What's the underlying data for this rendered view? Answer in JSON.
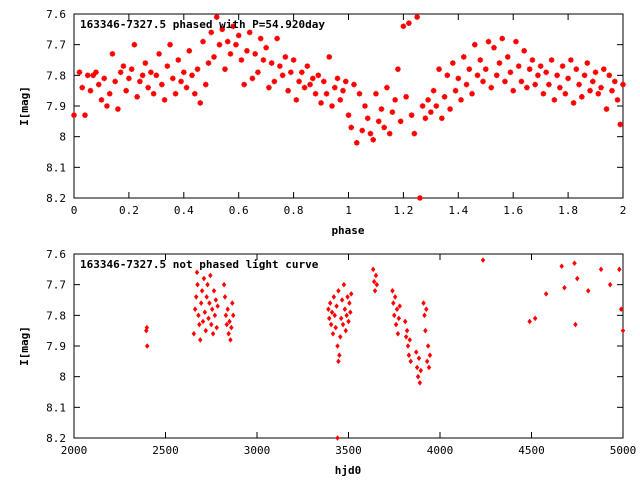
{
  "chart_data": [
    {
      "type": "scatter",
      "title": "163346-7327.5 phased with P=54.920day",
      "xlabel": "phase",
      "ylabel": "I[mag]",
      "xlim": [
        0,
        2
      ],
      "ylim": [
        7.6,
        8.2
      ],
      "y_inverted": true,
      "xticks": [
        "0",
        "0.2",
        "0.4",
        "0.6",
        "0.8",
        "1",
        "1.2",
        "1.4",
        "1.6",
        "1.8",
        "2"
      ],
      "yticks": [
        "7.6",
        "7.7",
        "7.8",
        "7.9",
        "8",
        "8.1",
        "8.2"
      ],
      "marker_color": "#ff0000",
      "grid": false,
      "points": [
        [
          0.0,
          7.93
        ],
        [
          0.02,
          7.79
        ],
        [
          0.03,
          7.84
        ],
        [
          0.04,
          7.93
        ],
        [
          0.05,
          7.8
        ],
        [
          0.06,
          7.85
        ],
        [
          0.07,
          7.8
        ],
        [
          0.08,
          7.79
        ],
        [
          0.09,
          7.83
        ],
        [
          0.1,
          7.88
        ],
        [
          0.11,
          7.81
        ],
        [
          0.12,
          7.9
        ],
        [
          0.13,
          7.86
        ],
        [
          0.14,
          7.73
        ],
        [
          0.15,
          7.82
        ],
        [
          0.16,
          7.91
        ],
        [
          0.17,
          7.79
        ],
        [
          0.18,
          7.77
        ],
        [
          0.19,
          7.85
        ],
        [
          0.2,
          7.81
        ],
        [
          0.21,
          7.78
        ],
        [
          0.22,
          7.7
        ],
        [
          0.23,
          7.87
        ],
        [
          0.24,
          7.82
        ],
        [
          0.25,
          7.8
        ],
        [
          0.26,
          7.76
        ],
        [
          0.27,
          7.84
        ],
        [
          0.28,
          7.79
        ],
        [
          0.29,
          7.86
        ],
        [
          0.3,
          7.8
        ],
        [
          0.31,
          7.73
        ],
        [
          0.32,
          7.83
        ],
        [
          0.33,
          7.88
        ],
        [
          0.34,
          7.77
        ],
        [
          0.35,
          7.7
        ],
        [
          0.36,
          7.81
        ],
        [
          0.37,
          7.86
        ],
        [
          0.38,
          7.75
        ],
        [
          0.39,
          7.82
        ],
        [
          0.4,
          7.79
        ],
        [
          0.41,
          7.84
        ],
        [
          0.42,
          7.72
        ],
        [
          0.43,
          7.8
        ],
        [
          0.44,
          7.86
        ],
        [
          0.45,
          7.78
        ],
        [
          0.46,
          7.89
        ],
        [
          0.47,
          7.69
        ],
        [
          0.48,
          7.83
        ],
        [
          0.49,
          7.76
        ],
        [
          0.5,
          7.66
        ],
        [
          0.51,
          7.74
        ],
        [
          0.52,
          7.61
        ],
        [
          0.53,
          7.7
        ],
        [
          0.54,
          7.65
        ],
        [
          0.55,
          7.78
        ],
        [
          0.56,
          7.69
        ],
        [
          0.57,
          7.73
        ],
        [
          0.58,
          7.64
        ],
        [
          0.59,
          7.7
        ],
        [
          0.6,
          7.67
        ],
        [
          0.61,
          7.75
        ],
        [
          0.62,
          7.83
        ],
        [
          0.63,
          7.72
        ],
        [
          0.64,
          7.66
        ],
        [
          0.65,
          7.81
        ],
        [
          0.66,
          7.73
        ],
        [
          0.67,
          7.79
        ],
        [
          0.68,
          7.68
        ],
        [
          0.69,
          7.75
        ],
        [
          0.7,
          7.71
        ],
        [
          0.71,
          7.84
        ],
        [
          0.72,
          7.76
        ],
        [
          0.73,
          7.82
        ],
        [
          0.74,
          7.68
        ],
        [
          0.75,
          7.77
        ],
        [
          0.76,
          7.8
        ],
        [
          0.77,
          7.74
        ],
        [
          0.78,
          7.85
        ],
        [
          0.79,
          7.79
        ],
        [
          0.8,
          7.75
        ],
        [
          0.81,
          7.88
        ],
        [
          0.82,
          7.82
        ],
        [
          0.83,
          7.79
        ],
        [
          0.84,
          7.84
        ],
        [
          0.85,
          7.77
        ],
        [
          0.86,
          7.83
        ],
        [
          0.87,
          7.81
        ],
        [
          0.88,
          7.86
        ],
        [
          0.89,
          7.8
        ],
        [
          0.9,
          7.89
        ],
        [
          0.91,
          7.82
        ],
        [
          0.92,
          7.86
        ],
        [
          0.93,
          7.74
        ],
        [
          0.94,
          7.9
        ],
        [
          0.95,
          7.84
        ],
        [
          0.96,
          7.81
        ],
        [
          0.97,
          7.88
        ],
        [
          0.98,
          7.85
        ],
        [
          0.99,
          7.82
        ],
        [
          1.0,
          7.93
        ],
        [
          1.01,
          7.97
        ],
        [
          1.02,
          7.83
        ],
        [
          1.03,
          8.02
        ],
        [
          1.04,
          7.86
        ],
        [
          1.05,
          7.98
        ],
        [
          1.06,
          7.9
        ],
        [
          1.07,
          7.94
        ],
        [
          1.08,
          7.99
        ],
        [
          1.09,
          8.01
        ],
        [
          1.1,
          7.86
        ],
        [
          1.11,
          7.95
        ],
        [
          1.12,
          7.91
        ],
        [
          1.13,
          7.97
        ],
        [
          1.14,
          7.84
        ],
        [
          1.15,
          7.99
        ],
        [
          1.16,
          7.92
        ],
        [
          1.17,
          7.88
        ],
        [
          1.18,
          7.78
        ],
        [
          1.19,
          7.95
        ],
        [
          1.2,
          7.64
        ],
        [
          1.21,
          7.87
        ],
        [
          1.22,
          7.63
        ],
        [
          1.23,
          7.93
        ],
        [
          1.24,
          7.99
        ],
        [
          1.25,
          7.61
        ],
        [
          1.26,
          8.2
        ],
        [
          1.27,
          7.9
        ],
        [
          1.28,
          7.94
        ],
        [
          1.29,
          7.88
        ],
        [
          1.3,
          7.92
        ],
        [
          1.31,
          7.85
        ],
        [
          1.32,
          7.9
        ],
        [
          1.33,
          7.78
        ],
        [
          1.34,
          7.94
        ],
        [
          1.35,
          7.87
        ],
        [
          1.36,
          7.8
        ],
        [
          1.37,
          7.91
        ],
        [
          1.38,
          7.76
        ],
        [
          1.39,
          7.85
        ],
        [
          1.4,
          7.81
        ],
        [
          1.41,
          7.88
        ],
        [
          1.42,
          7.74
        ],
        [
          1.43,
          7.83
        ],
        [
          1.44,
          7.78
        ],
        [
          1.45,
          7.86
        ],
        [
          1.46,
          7.7
        ],
        [
          1.47,
          7.8
        ],
        [
          1.48,
          7.75
        ],
        [
          1.49,
          7.82
        ],
        [
          1.5,
          7.78
        ],
        [
          1.51,
          7.69
        ],
        [
          1.52,
          7.84
        ],
        [
          1.53,
          7.71
        ],
        [
          1.54,
          7.8
        ],
        [
          1.55,
          7.76
        ],
        [
          1.56,
          7.68
        ],
        [
          1.57,
          7.82
        ],
        [
          1.58,
          7.74
        ],
        [
          1.59,
          7.79
        ],
        [
          1.6,
          7.85
        ],
        [
          1.61,
          7.69
        ],
        [
          1.62,
          7.77
        ],
        [
          1.63,
          7.82
        ],
        [
          1.64,
          7.72
        ],
        [
          1.65,
          7.84
        ],
        [
          1.66,
          7.78
        ],
        [
          1.67,
          7.75
        ],
        [
          1.68,
          7.83
        ],
        [
          1.69,
          7.8
        ],
        [
          1.7,
          7.77
        ],
        [
          1.71,
          7.86
        ],
        [
          1.72,
          7.79
        ],
        [
          1.73,
          7.83
        ],
        [
          1.74,
          7.75
        ],
        [
          1.75,
          7.88
        ],
        [
          1.76,
          7.8
        ],
        [
          1.77,
          7.84
        ],
        [
          1.78,
          7.77
        ],
        [
          1.79,
          7.86
        ],
        [
          1.8,
          7.81
        ],
        [
          1.81,
          7.75
        ],
        [
          1.82,
          7.89
        ],
        [
          1.83,
          7.78
        ],
        [
          1.84,
          7.83
        ],
        [
          1.85,
          7.87
        ],
        [
          1.86,
          7.8
        ],
        [
          1.87,
          7.76
        ],
        [
          1.88,
          7.85
        ],
        [
          1.89,
          7.82
        ],
        [
          1.9,
          7.79
        ],
        [
          1.91,
          7.86
        ],
        [
          1.92,
          7.84
        ],
        [
          1.93,
          7.78
        ],
        [
          1.94,
          7.91
        ],
        [
          1.95,
          7.8
        ],
        [
          1.96,
          7.85
        ],
        [
          1.97,
          7.82
        ],
        [
          1.98,
          7.88
        ],
        [
          1.99,
          7.96
        ],
        [
          2.0,
          7.83
        ]
      ]
    },
    {
      "type": "scatter",
      "title": "163346-7327.5 not phased light curve",
      "xlabel": "hjd0",
      "ylabel": "I[mag]",
      "xlim": [
        2000,
        5000
      ],
      "ylim": [
        7.6,
        8.2
      ],
      "y_inverted": true,
      "xticks": [
        "2000",
        "2500",
        "3000",
        "3500",
        "4000",
        "4500",
        "5000"
      ],
      "yticks": [
        "7.6",
        "7.7",
        "7.8",
        "7.9",
        "8",
        "8.1",
        "8.2"
      ],
      "marker_color": "#ff0000",
      "grid": false,
      "points": [
        [
          2395,
          7.85
        ],
        [
          2398,
          7.84
        ],
        [
          2400,
          7.9
        ],
        [
          2655,
          7.86
        ],
        [
          2662,
          7.78
        ],
        [
          2668,
          7.74
        ],
        [
          2672,
          7.66
        ],
        [
          2675,
          7.7
        ],
        [
          2680,
          7.8
        ],
        [
          2685,
          7.83
        ],
        [
          2690,
          7.88
        ],
        [
          2695,
          7.76
        ],
        [
          2700,
          7.72
        ],
        [
          2705,
          7.82
        ],
        [
          2710,
          7.68
        ],
        [
          2715,
          7.79
        ],
        [
          2720,
          7.85
        ],
        [
          2725,
          7.74
        ],
        [
          2730,
          7.7
        ],
        [
          2735,
          7.81
        ],
        [
          2740,
          7.76
        ],
        [
          2745,
          7.67
        ],
        [
          2750,
          7.83
        ],
        [
          2755,
          7.78
        ],
        [
          2760,
          7.86
        ],
        [
          2765,
          7.72
        ],
        [
          2770,
          7.8
        ],
        [
          2775,
          7.75
        ],
        [
          2780,
          7.84
        ],
        [
          2785,
          7.77
        ],
        [
          2820,
          7.7
        ],
        [
          2825,
          7.74
        ],
        [
          2830,
          7.8
        ],
        [
          2835,
          7.83
        ],
        [
          2840,
          7.78
        ],
        [
          2845,
          7.86
        ],
        [
          2850,
          7.82
        ],
        [
          2855,
          7.88
        ],
        [
          2860,
          7.84
        ],
        [
          2865,
          7.76
        ],
        [
          2870,
          7.8
        ],
        [
          3390,
          7.78
        ],
        [
          3395,
          7.81
        ],
        [
          3400,
          7.76
        ],
        [
          3405,
          7.83
        ],
        [
          3410,
          7.79
        ],
        [
          3415,
          7.86
        ],
        [
          3420,
          7.74
        ],
        [
          3425,
          7.8
        ],
        [
          3430,
          7.84
        ],
        [
          3435,
          7.77
        ],
        [
          3440,
          7.9
        ],
        [
          3445,
          7.72
        ],
        [
          3450,
          7.93
        ],
        [
          3455,
          7.87
        ],
        [
          3460,
          7.81
        ],
        [
          3465,
          7.75
        ],
        [
          3470,
          7.83
        ],
        [
          3475,
          7.7
        ],
        [
          3480,
          7.78
        ],
        [
          3485,
          7.85
        ],
        [
          3490,
          7.8
        ],
        [
          3495,
          7.74
        ],
        [
          3500,
          7.82
        ],
        [
          3505,
          7.76
        ],
        [
          3510,
          7.79
        ],
        [
          3515,
          7.73
        ],
        [
          3440,
          8.2
        ],
        [
          3445,
          7.95
        ],
        [
          3635,
          7.65
        ],
        [
          3640,
          7.69
        ],
        [
          3645,
          7.72
        ],
        [
          3650,
          7.67
        ],
        [
          3655,
          7.7
        ],
        [
          3740,
          7.72
        ],
        [
          3745,
          7.76
        ],
        [
          3750,
          7.8
        ],
        [
          3755,
          7.74
        ],
        [
          3760,
          7.83
        ],
        [
          3765,
          7.78
        ],
        [
          3770,
          7.86
        ],
        [
          3775,
          7.81
        ],
        [
          3780,
          7.77
        ],
        [
          3810,
          7.82
        ],
        [
          3815,
          7.87
        ],
        [
          3820,
          7.85
        ],
        [
          3825,
          7.9
        ],
        [
          3830,
          7.93
        ],
        [
          3835,
          7.88
        ],
        [
          3840,
          7.95
        ],
        [
          3870,
          7.92
        ],
        [
          3875,
          7.97
        ],
        [
          3880,
          8.0
        ],
        [
          3885,
          7.94
        ],
        [
          3890,
          8.02
        ],
        [
          3895,
          7.98
        ],
        [
          3910,
          7.76
        ],
        [
          3915,
          7.8
        ],
        [
          3920,
          7.85
        ],
        [
          3925,
          7.78
        ],
        [
          3930,
          7.95
        ],
        [
          3935,
          7.9
        ],
        [
          3940,
          7.97
        ],
        [
          3945,
          7.93
        ],
        [
          4235,
          7.62
        ],
        [
          4490,
          7.82
        ],
        [
          4520,
          7.81
        ],
        [
          4580,
          7.73
        ],
        [
          4665,
          7.64
        ],
        [
          4680,
          7.71
        ],
        [
          4735,
          7.63
        ],
        [
          4740,
          7.83
        ],
        [
          4750,
          7.68
        ],
        [
          4810,
          7.72
        ],
        [
          4880,
          7.65
        ],
        [
          4930,
          7.7
        ],
        [
          4980,
          7.65
        ],
        [
          4990,
          7.78
        ],
        [
          5000,
          7.85
        ]
      ]
    }
  ]
}
